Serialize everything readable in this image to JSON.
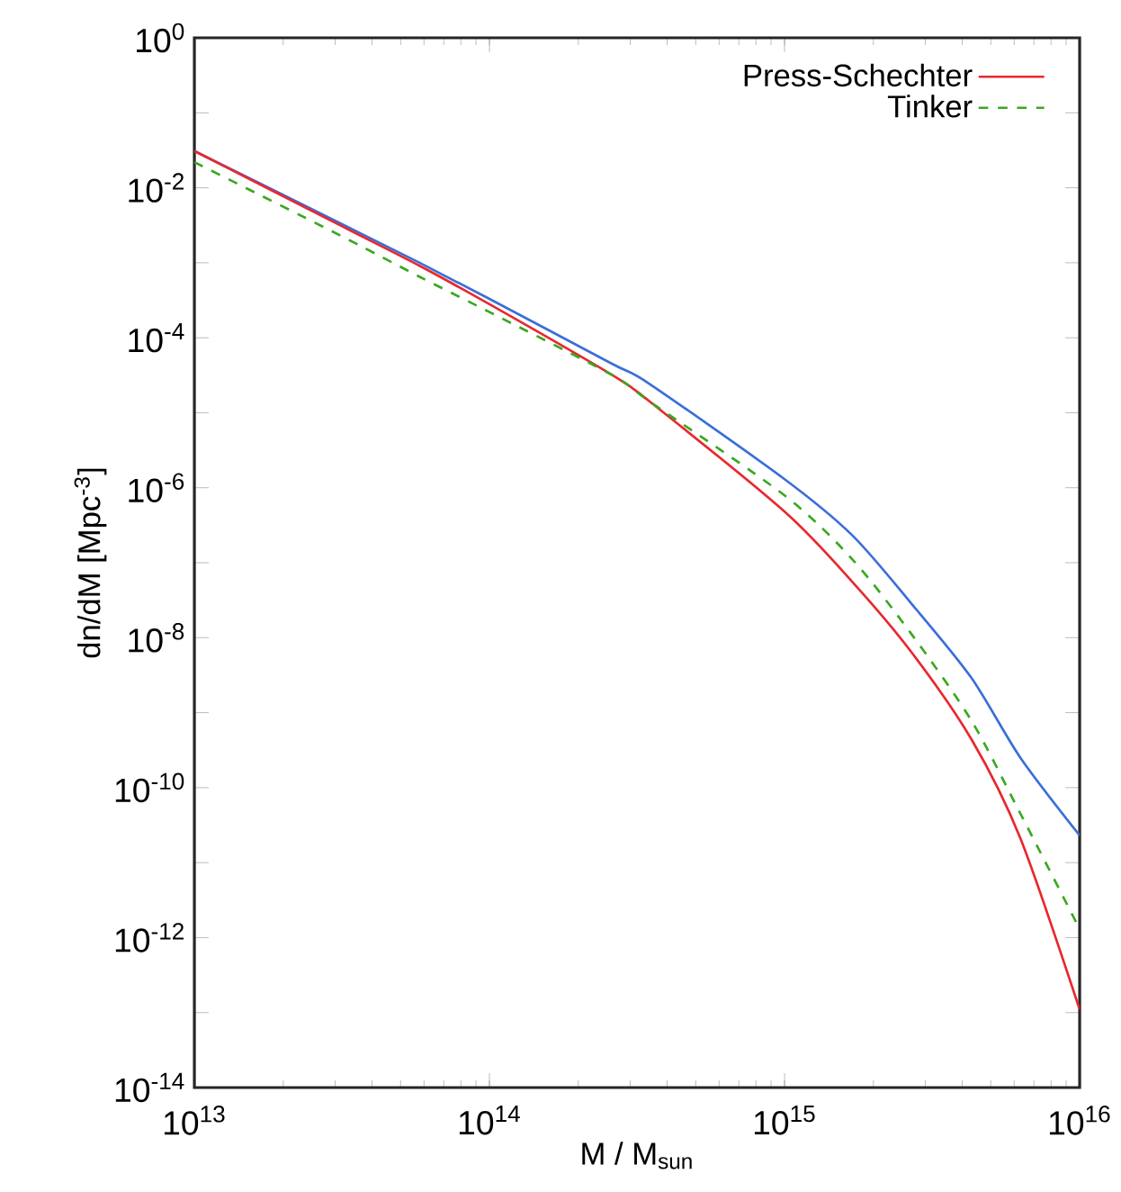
{
  "chart_data": {
    "type": "line",
    "xlabel": "M / M$_{sun}$",
    "ylabel": "dn/dM  [Mpc$^{-3}$]",
    "log": "xy",
    "x": [
      10000000000000.0,
      32000000000000.0,
      58000000000000.0,
      100000000000000.0,
      260000000000000.0,
      350000000000000.0,
      1000000000000000.0,
      1700000000000000.0,
      2700000000000000.0,
      4300000000000000.0,
      6300000000000000.0,
      1e+16
    ],
    "series": [
      {
        "color": "#3a6fd8",
        "values": [
          0.031,
          0.0032,
          0.001,
          0.00033,
          4.5e-05,
          2.4e-05,
          1.3e-06,
          2.3e-07,
          2.8e-08,
          2.9e-09,
          2.5e-10,
          2.3e-11
        ]
      },
      {
        "name": "Press-Schechter",
        "color": "#e8282e",
        "values": [
          0.031,
          0.003,
          0.00091,
          0.00028,
          3.2e-05,
          1.4e-05,
          4.8e-07,
          5.5e-08,
          6.3e-09,
          4.4e-10,
          2.1e-11,
          1.1e-13
        ]
      },
      {
        "name": "Tinker",
        "color": "#3aa820",
        "line_style": "dashed",
        "values": [
          0.022,
          0.0022,
          0.00065,
          0.00022,
          3.2e-05,
          1.4e-05,
          7.9e-07,
          1.1e-07,
          1.1e-08,
          7.8e-10,
          4.5e-11,
          1.3e-12
        ]
      }
    ],
    "xlim": [
      10000000000000.0,
      1e+16
    ],
    "xticks": [
      {
        "value": 10000000000000.0,
        "label": "10$^{13}$"
      },
      {
        "value": 100000000000000.0,
        "label": "10$^{14}$"
      },
      {
        "value": 1000000000000000.0,
        "label": "10$^{15}$"
      },
      {
        "value": 1e+16,
        "label": "10$^{16}$"
      }
    ],
    "ylim": [
      1e-14,
      1
    ],
    "yticks": [
      {
        "value": 1e-14,
        "label": "10$^{-14}$"
      },
      {
        "value": 1e-13,
        "label": null
      },
      {
        "value": 1e-12,
        "label": "10$^{-12}$"
      },
      {
        "value": 1e-11,
        "label": null
      },
      {
        "value": 1e-10,
        "label": "10$^{-10}$"
      },
      {
        "value": 1e-09,
        "label": null
      },
      {
        "value": 1e-08,
        "label": "10$^{-8}$"
      },
      {
        "value": 1e-07,
        "label": null
      },
      {
        "value": 1e-06,
        "label": "10$^{-6}$"
      },
      {
        "value": 1e-05,
        "label": null
      },
      {
        "value": 0.0001,
        "label": "10$^{-4}$"
      },
      {
        "value": 0.001,
        "label": null
      },
      {
        "value": 0.01,
        "label": "10$^{-2}$"
      },
      {
        "value": 0.1,
        "label": null
      },
      {
        "value": 1,
        "label": "10$^{0}$"
      }
    ],
    "legend": "top right",
    "grid": false,
    "marker": "none"
  }
}
